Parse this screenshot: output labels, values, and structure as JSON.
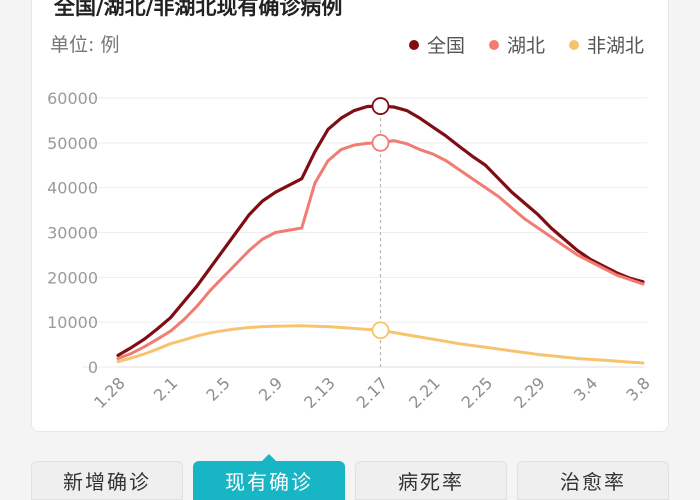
{
  "title": "全国/湖北/非湖北现有确诊病例",
  "unit_label": "单位: 例",
  "legend": [
    {
      "name": "全国",
      "color": "#7f0d13"
    },
    {
      "name": "湖北",
      "color": "#f17c72"
    },
    {
      "name": "非湖北",
      "color": "#f7c46e"
    }
  ],
  "tabs": [
    {
      "label": "新增确诊",
      "active": false
    },
    {
      "label": "现有确诊",
      "active": true
    },
    {
      "label": "病死率",
      "active": false
    },
    {
      "label": "治愈率",
      "active": false
    }
  ],
  "chart_data": {
    "type": "line",
    "title": "全国/湖北/非湖北现有确诊病例",
    "ylabel": "单位: 例",
    "x_ticks": [
      "1.28",
      "2.1",
      "2.5",
      "2.9",
      "2.13",
      "2.17",
      "2.21",
      "2.25",
      "2.29",
      "3.4",
      "3.8"
    ],
    "ylim": [
      0,
      60000
    ],
    "y_ticks": [
      0,
      10000,
      20000,
      30000,
      40000,
      50000,
      60000
    ],
    "y_tick_labels": [
      "0",
      "10000",
      "20000",
      "30000",
      "40000",
      "50000",
      "60000"
    ],
    "highlight_date": "2.17",
    "grid": true,
    "legend_position": "top-right",
    "x": [
      "1.28",
      "1.29",
      "1.30",
      "1.31",
      "2.1",
      "2.2",
      "2.3",
      "2.4",
      "2.5",
      "2.6",
      "2.7",
      "2.8",
      "2.9",
      "2.10",
      "2.11",
      "2.12",
      "2.13",
      "2.14",
      "2.15",
      "2.16",
      "2.17",
      "2.18",
      "2.19",
      "2.20",
      "2.21",
      "2.22",
      "2.23",
      "2.24",
      "2.25",
      "2.26",
      "2.27",
      "2.28",
      "2.29",
      "3.1",
      "3.2",
      "3.3",
      "3.4",
      "3.5",
      "3.6",
      "3.7",
      "3.8"
    ],
    "series": [
      {
        "name": "全国",
        "color": "#7f0d13",
        "values": [
          2600,
          4300,
          6200,
          8500,
          11000,
          14500,
          18000,
          22000,
          26000,
          30000,
          34000,
          37000,
          39000,
          40500,
          42000,
          48000,
          53000,
          55500,
          57200,
          58100,
          58200,
          58000,
          57200,
          55500,
          53500,
          51500,
          49200,
          47000,
          45000,
          42000,
          39000,
          36500,
          34000,
          31000,
          28500,
          26000,
          24000,
          22500,
          21000,
          19800,
          19000
        ]
      },
      {
        "name": "湖北",
        "color": "#f17c72",
        "values": [
          1900,
          3000,
          4500,
          6200,
          8000,
          10500,
          13500,
          17000,
          20000,
          23000,
          26000,
          28500,
          30000,
          30500,
          31000,
          41000,
          46000,
          48500,
          49500,
          49900,
          50000,
          50500,
          49800,
          48500,
          47500,
          46000,
          44000,
          42000,
          40000,
          38000,
          35500,
          33000,
          31000,
          29000,
          27000,
          25000,
          23500,
          22000,
          20500,
          19500,
          18500
        ]
      },
      {
        "name": "非湖北",
        "color": "#f7c46e",
        "values": [
          1200,
          2000,
          2900,
          4000,
          5200,
          6000,
          6900,
          7600,
          8100,
          8500,
          8800,
          9000,
          9100,
          9150,
          9200,
          9100,
          9000,
          8800,
          8600,
          8400,
          8200,
          7700,
          7200,
          6700,
          6200,
          5700,
          5200,
          4800,
          4400,
          4000,
          3600,
          3200,
          2800,
          2500,
          2200,
          1900,
          1700,
          1500,
          1300,
          1100,
          900
        ]
      }
    ]
  }
}
